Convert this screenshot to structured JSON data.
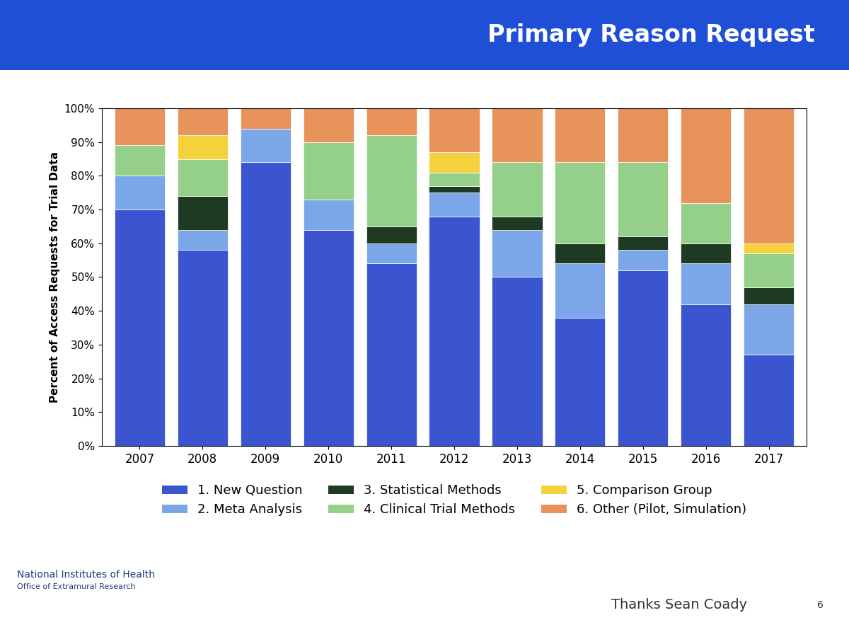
{
  "chart_data": {
    "type": "bar",
    "title": "Primary Reason Request",
    "y_label": "Percent of Access Requests for Trial Data",
    "categories": [
      "2007",
      "2008",
      "2009",
      "2010",
      "2011",
      "2012",
      "2013",
      "2014",
      "2015",
      "2016",
      "2017"
    ],
    "stacked": true,
    "legend": "upper center",
    "ylim": [
      0,
      100
    ],
    "yticks": [
      {
        "value": 0,
        "label": "0%"
      },
      {
        "value": 10,
        "label": "10%"
      },
      {
        "value": 20,
        "label": "20%"
      },
      {
        "value": 30,
        "label": "30%"
      },
      {
        "value": 40,
        "label": "40%"
      },
      {
        "value": 50,
        "label": "50%"
      },
      {
        "value": 60,
        "label": "60%"
      },
      {
        "value": 70,
        "label": "70%"
      },
      {
        "value": 80,
        "label": "80%"
      },
      {
        "value": 90,
        "label": "90%"
      },
      {
        "value": 100,
        "label": "100%"
      }
    ],
    "series": [
      {
        "name": "1. New Question",
        "color": "#3a55cf",
        "values": [
          70,
          58,
          84,
          64,
          54,
          68,
          50,
          38,
          52,
          42,
          27
        ]
      },
      {
        "name": "2. Meta Analysis",
        "color": "#7ba7e8",
        "values": [
          10,
          6,
          10,
          9,
          6,
          7,
          14,
          16,
          6,
          12,
          15
        ]
      },
      {
        "name": "3. Statistical Methods",
        "color": "#1f3a22",
        "values": [
          0,
          10,
          0,
          0,
          5,
          2,
          4,
          6,
          4,
          6,
          5
        ]
      },
      {
        "name": "4. Clinical Trial Methods",
        "color": "#95d08a",
        "values": [
          9,
          11,
          0,
          17,
          27,
          4,
          16,
          24,
          22,
          12,
          10
        ]
      },
      {
        "name": "5. Comparison Group",
        "color": "#f3d23e",
        "values": [
          0,
          7,
          0,
          0,
          0,
          6,
          0,
          0,
          0,
          0,
          3
        ]
      },
      {
        "name": "6. Other (Pilot, Simulation)",
        "color": "#e8925c",
        "values": [
          11,
          8,
          6,
          10,
          8,
          13,
          16,
          16,
          16,
          28,
          40
        ]
      }
    ],
    "annotations": [
      "National Institutes of Health",
      "Office of Extramural Research",
      "Thanks Sean Coady",
      "6"
    ]
  }
}
